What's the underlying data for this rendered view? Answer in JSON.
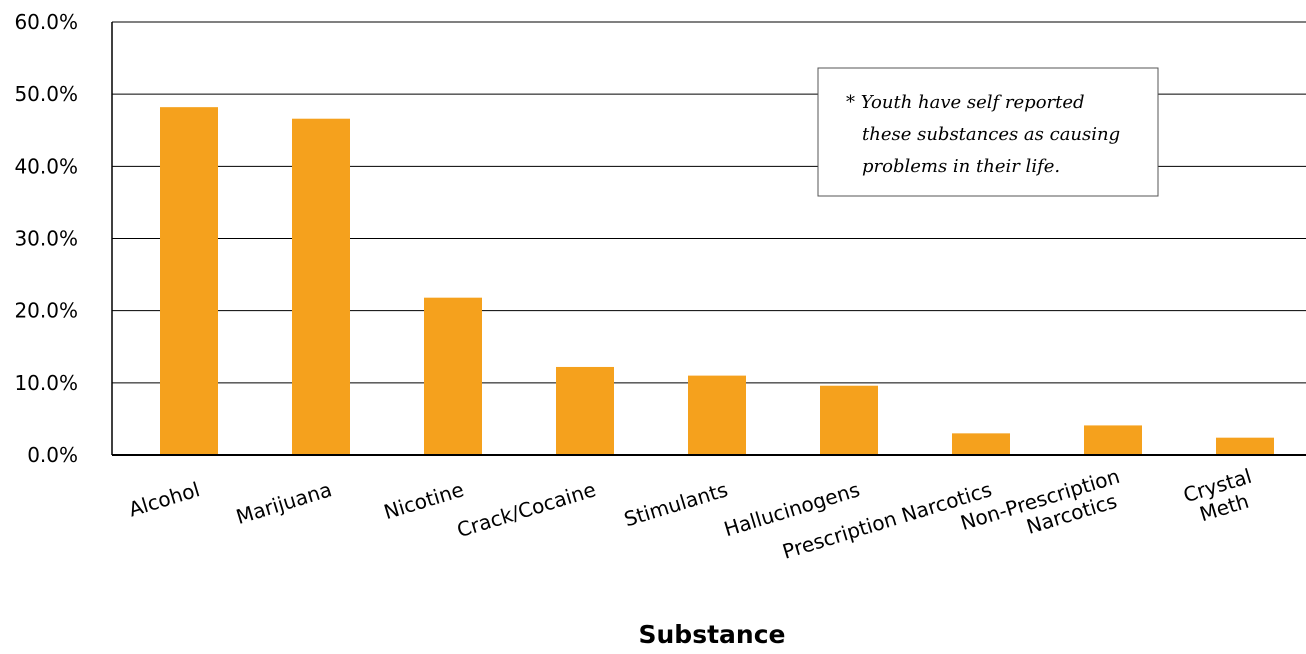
{
  "chart_data": {
    "type": "bar",
    "categories": [
      "Alcohol",
      "Marijuana",
      "Nicotine",
      "Crack/Cocaine",
      "Stimulants",
      "Hallucinogens",
      "Prescription Narcotics",
      "Non-Prescription Narcotics",
      "Crystal Meth"
    ],
    "category_lines": [
      [
        "Alcohol"
      ],
      [
        "Marijuana"
      ],
      [
        "Nicotine"
      ],
      [
        "Crack/Cocaine"
      ],
      [
        "Stimulants"
      ],
      [
        "Hallucinogens"
      ],
      [
        "Prescription Narcotics"
      ],
      [
        "Non-Prescription",
        "Narcotics"
      ],
      [
        "Crystal",
        "Meth"
      ]
    ],
    "values": [
      48.2,
      46.6,
      21.8,
      12.2,
      11.0,
      9.6,
      3.0,
      4.1,
      2.4
    ],
    "ylim": [
      0,
      60
    ],
    "yticks": [
      "0.0%",
      "10.0%",
      "20.0%",
      "30.0%",
      "40.0%",
      "50.0%",
      "60.0%"
    ],
    "xlabel": "Substance",
    "ylabel": "",
    "title": "",
    "grid": true,
    "bar_color": "#f5a11d",
    "annotation": [
      "* Youth have self reported",
      "these substances as causing",
      "problems in their life."
    ]
  }
}
